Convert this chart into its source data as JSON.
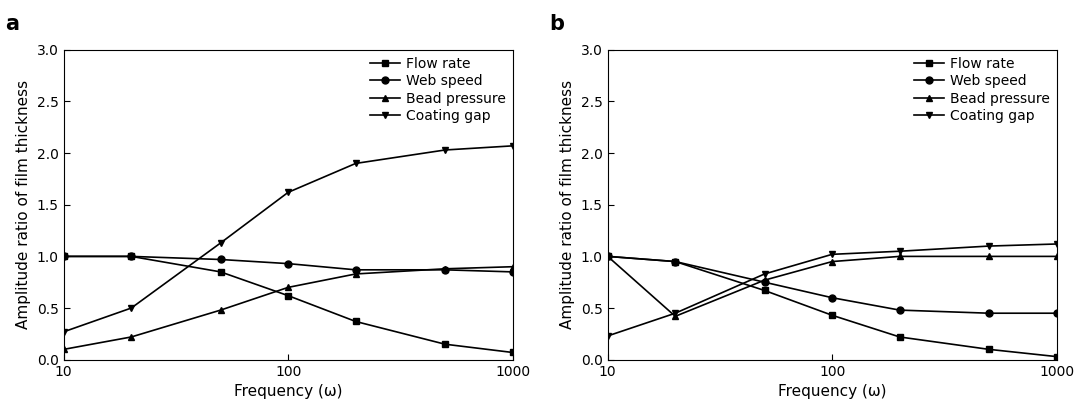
{
  "x": [
    10,
    20,
    50,
    100,
    200,
    500,
    1000
  ],
  "panel_a": {
    "label": "a",
    "flow_rate": [
      1.0,
      1.0,
      0.85,
      0.62,
      0.37,
      0.15,
      0.07
    ],
    "web_speed": [
      1.0,
      1.0,
      0.97,
      0.93,
      0.87,
      0.87,
      0.85
    ],
    "bead_pressure": [
      0.1,
      0.22,
      0.48,
      0.7,
      0.83,
      0.88,
      0.9
    ],
    "coating_gap": [
      0.27,
      0.5,
      1.13,
      1.62,
      1.9,
      2.03,
      2.07
    ]
  },
  "panel_b": {
    "label": "b",
    "flow_rate": [
      1.0,
      0.95,
      0.67,
      0.43,
      0.22,
      0.1,
      0.03
    ],
    "web_speed": [
      1.0,
      0.95,
      0.75,
      0.6,
      0.48,
      0.45,
      0.45
    ],
    "bead_pressure": [
      1.0,
      0.42,
      0.77,
      0.95,
      1.0,
      1.0,
      1.0
    ],
    "coating_gap": [
      0.23,
      0.45,
      0.83,
      1.02,
      1.05,
      1.1,
      1.12
    ]
  },
  "legend_labels": [
    "Flow rate",
    "Web speed",
    "Bead pressure",
    "Coating gap"
  ],
  "markers": [
    "s",
    "o",
    "^",
    "v"
  ],
  "xlabel": "Frequency (ω)",
  "ylabel": "Amplitude ratio of film thickness",
  "ylim": [
    0.0,
    3.0
  ],
  "yticks": [
    0.0,
    0.5,
    1.0,
    1.5,
    2.0,
    2.5,
    3.0
  ],
  "xticks": [
    10,
    100,
    1000
  ],
  "line_color": "#000000",
  "fontsize_label": 11,
  "fontsize_tick": 10,
  "fontsize_legend": 10,
  "fontsize_panel_label": 15,
  "markersize": 5,
  "linewidth": 1.2
}
